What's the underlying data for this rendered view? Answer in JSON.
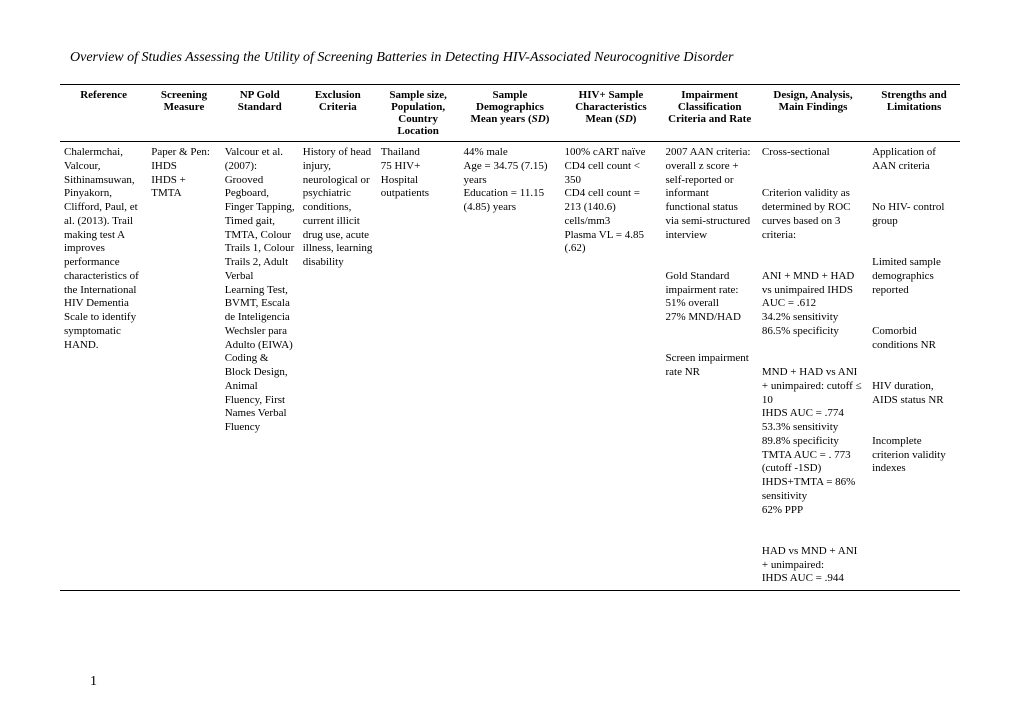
{
  "title": "Overview of Studies Assessing the Utility of Screening Batteries in Detecting HIV-Associated Neurocognitive Disorder",
  "page_number": "1",
  "headers": {
    "c0": "Reference",
    "c1": "Screening Measure",
    "c2": "NP Gold Standard",
    "c3": "Exclusion Criteria",
    "c4": "Sample size, Population, Country Location",
    "c5_a": "Sample Demographics Mean years (",
    "c5_b": "SD",
    "c5_c": ")",
    "c6_a": "HIV+ Sample Characteristics Mean (",
    "c6_b": "SD",
    "c6_c": ")",
    "c7": "Impairment Classification Criteria and Rate",
    "c8": "Design, Analysis, Main Findings",
    "c9": "Strengths and Limitations"
  },
  "row": {
    "c0": "Chalermchai, Valcour, Sithinamsuwan, Pinyakorn, Clifford, Paul, et al. (2013). Trail making test A improves performance characteristics of the International HIV Dementia Scale to identify symptomatic HAND.",
    "c1": "Paper & Pen:\nIHDS\nIHDS + TMTA",
    "c2": "Valcour et al. (2007): Grooved Pegboard, Finger Tapping, Timed gait, TMTA, Colour Trails 1, Colour Trails 2, Adult Verbal Learning Test, BVMT, Escala de Inteligencia Wechsler para Adulto (EIWA) Coding & Block Design, Animal Fluency, First Names Verbal Fluency",
    "c3": "History of head injury, neurological or psychiatric conditions, current illicit drug use, acute illness, learning disability",
    "c4": "Thailand\n75 HIV+\nHospital outpatients",
    "c5": "44% male\nAge = 34.75 (7.15) years\nEducation = 11.15 (4.85) years",
    "c6": "100% cART naïve\nCD4 cell count < 350\nCD4 cell count = 213 (140.6) cells/mm3\nPlasma VL = 4.85 (.62)",
    "c7": "2007 AAN criteria:\noverall z score + self-reported or informant functional status via semi-structured interview\n\nGold Standard impairment rate:\n51% overall\n27% MND/HAD\n\nScreen impairment rate NR",
    "c8": "Cross-sectional\n\nCriterion validity as determined by ROC curves based on 3 criteria:\n\nANI + MND + HAD vs unimpaired IHDS AUC = .612\n34.2% sensitivity\n86.5% specificity\n\nMND + HAD vs ANI + unimpaired: cutoff ≤ 10\nIHDS AUC = .774\n53.3% sensitivity\n89.8% specificity\nTMTA AUC = . 773 (cutoff -1SD)\nIHDS+TMTA = 86% sensitivity\n62% PPP\n\nHAD vs MND + ANI + unimpaired:\nIHDS AUC = .944",
    "c9": "Application of AAN criteria\n\nNo HIV- control group\n\nLimited sample demographics reported\n\nComorbid conditions NR\n\nHIV duration, AIDS status NR\n\nIncomplete criterion validity indexes"
  }
}
